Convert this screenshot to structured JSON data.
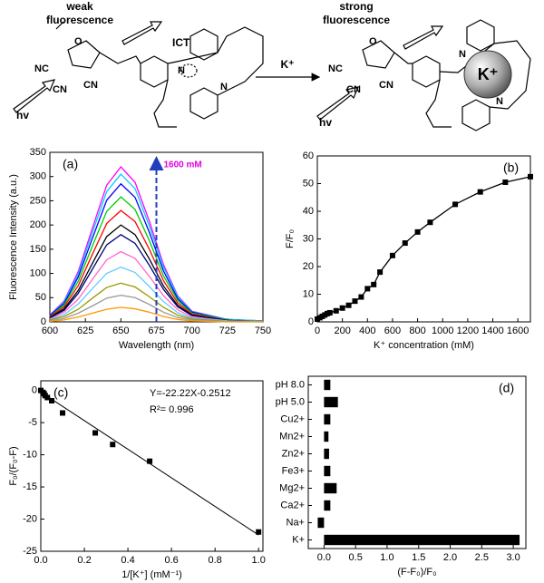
{
  "scheme": {
    "left": {
      "label_1": "weak",
      "label_2": "fluorescence",
      "ict": "ICT",
      "hv": "hv",
      "nc": "NC",
      "cn_1": "CN",
      "cn_2": "CN",
      "n_1": "N",
      "n_2": "N",
      "o": "O"
    },
    "reaction": "K⁺",
    "right": {
      "label_1": "strong",
      "label_2": "fluorescence",
      "ion": "K⁺",
      "hv": "hv",
      "nc": "NC",
      "cn_1": "CN",
      "cn_2": "CN",
      "n_1": "N",
      "n_2": "N",
      "o": "O"
    }
  },
  "chart_data": [
    {
      "type": "line",
      "panel_label": "(a)",
      "x_label": "Wavelength (nm)",
      "y_label": "Fluorescence Intensity (a.u.)",
      "annotation": "1600 mM",
      "x": [
        600,
        610,
        620,
        630,
        640,
        650,
        660,
        670,
        680,
        690,
        700,
        725,
        750
      ],
      "series": [
        {
          "color": "#ff00ff",
          "values": [
            14,
            43,
            104,
            194,
            282,
            320,
            288,
            208,
            118,
            54,
            22,
            5,
            2
          ]
        },
        {
          "color": "#00ccff",
          "values": [
            13,
            41,
            99,
            185,
            269,
            305,
            275,
            198,
            113,
            52,
            21,
            5,
            2
          ]
        },
        {
          "color": "#0000ff",
          "values": [
            13,
            38,
            93,
            173,
            251,
            285,
            257,
            185,
            105,
            48,
            20,
            4,
            1
          ]
        },
        {
          "color": "#00cc00",
          "values": [
            11,
            35,
            84,
            157,
            228,
            258,
            232,
            168,
            95,
            44,
            18,
            4,
            1
          ]
        },
        {
          "color": "#ff0000",
          "values": [
            10,
            31,
            75,
            140,
            203,
            230,
            207,
            150,
            85,
            39,
            16,
            3,
            1
          ]
        },
        {
          "color": "#000000",
          "values": [
            9,
            27,
            65,
            121,
            176,
            200,
            180,
            130,
            74,
            34,
            14,
            3,
            1
          ]
        },
        {
          "color": "#000080",
          "values": [
            8,
            24,
            59,
            109,
            159,
            180,
            162,
            117,
            67,
            31,
            13,
            3,
            1
          ]
        },
        {
          "color": "#ff66cc",
          "values": [
            6,
            20,
            47,
            88,
            128,
            145,
            131,
            94,
            54,
            25,
            10,
            2,
            1
          ]
        },
        {
          "color": "#66ccff",
          "values": [
            5,
            15,
            37,
            69,
            100,
            113,
            102,
            73,
            42,
            19,
            8,
            2,
            1
          ]
        },
        {
          "color": "#999900",
          "values": [
            4,
            11,
            26,
            49,
            71,
            80,
            72,
            52,
            30,
            14,
            6,
            1,
            0
          ]
        },
        {
          "color": "#999999",
          "values": [
            2,
            7,
            18,
            33,
            49,
            55,
            50,
            36,
            20,
            9,
            4,
            1,
            0
          ]
        },
        {
          "color": "#ff9900",
          "values": [
            1,
            4,
            10,
            18,
            26,
            30,
            27,
            20,
            11,
            5,
            2,
            0,
            0
          ]
        }
      ],
      "xlim": [
        600,
        750
      ],
      "xticks": [
        600,
        625,
        650,
        675,
        700,
        725,
        750
      ],
      "ylim": [
        0,
        350
      ],
      "yticks": [
        0,
        50,
        100,
        150,
        200,
        250,
        300,
        350
      ]
    },
    {
      "type": "line",
      "markers": true,
      "panel_label": "(b)",
      "x_label": "K⁺ concentration (mM)",
      "y_label": "F/F₀",
      "x": [
        0,
        20,
        40,
        60,
        80,
        100,
        150,
        200,
        250,
        300,
        350,
        400,
        450,
        500,
        600,
        700,
        800,
        900,
        1100,
        1300,
        1500,
        1700
      ],
      "series": [
        {
          "color": "#000000",
          "values": [
            1,
            1.5,
            2,
            2.5,
            3,
            3.3,
            4,
            5,
            6,
            7.5,
            9,
            12,
            13.5,
            18,
            24,
            28.5,
            32.5,
            36,
            42.5,
            47,
            50.5,
            52.5
          ]
        }
      ],
      "xlim": [
        0,
        1700
      ],
      "xticks": [
        0,
        200,
        400,
        600,
        800,
        1000,
        1200,
        1400,
        1600
      ],
      "ylim": [
        0,
        60
      ],
      "yticks": [
        0,
        10,
        20,
        30,
        40,
        50,
        60
      ]
    },
    {
      "type": "scatter",
      "panel_label": "(c)",
      "x_label": "1/[K⁺] (mM⁻¹)",
      "y_label": "F₀/(F₀-F)",
      "equation": "Y=-22.22X-0.2512",
      "r_squared": "R²= 0.996",
      "x": [
        0,
        0.01,
        0.015,
        0.02,
        0.03,
        0.05,
        0.1,
        0.25,
        0.33,
        0.5,
        1.0
      ],
      "values": [
        0,
        -0.3,
        -0.5,
        -0.8,
        -1.1,
        -1.6,
        -3.5,
        -6.6,
        -8.4,
        -11,
        -22
      ],
      "color": "#000000",
      "fit_line": {
        "x": [
          0,
          1.0
        ],
        "y": [
          -0.25,
          -22.47
        ]
      },
      "xlim": [
        0,
        1.02
      ],
      "xticks": [
        {
          "value": 0,
          "label": "0.0"
        },
        0.2,
        0.4,
        0.6,
        0.8,
        {
          "value": 1,
          "label": "1.0"
        }
      ],
      "ylim": [
        -25,
        1.5
      ],
      "yticks": [
        0,
        -5,
        -10,
        -15,
        -20,
        -25
      ]
    },
    {
      "type": "bar",
      "orientation": "horizontal",
      "panel_label": "(d)",
      "x_label": "(F-F₀)/F₀",
      "categories": [
        "pH 8.0",
        "pH 5.0",
        "Cu2+",
        "Mn2+",
        "Zn2+",
        "Fe3+",
        "Mg2+",
        "Ca2+",
        "Na+",
        "K+"
      ],
      "values": [
        0.1,
        0.22,
        0.1,
        0.07,
        0.08,
        0.1,
        0.2,
        0.1,
        -0.1,
        3.1
      ],
      "color": "#000000",
      "xlim": [
        -0.25,
        3.2
      ],
      "xticks": [
        {
          "value": 0,
          "label": "0.0"
        },
        0.5,
        {
          "value": 1,
          "label": "1.0"
        },
        1.5,
        {
          "value": 2,
          "label": "2.0"
        },
        2.5,
        {
          "value": 3,
          "label": "3.0"
        }
      ]
    }
  ]
}
